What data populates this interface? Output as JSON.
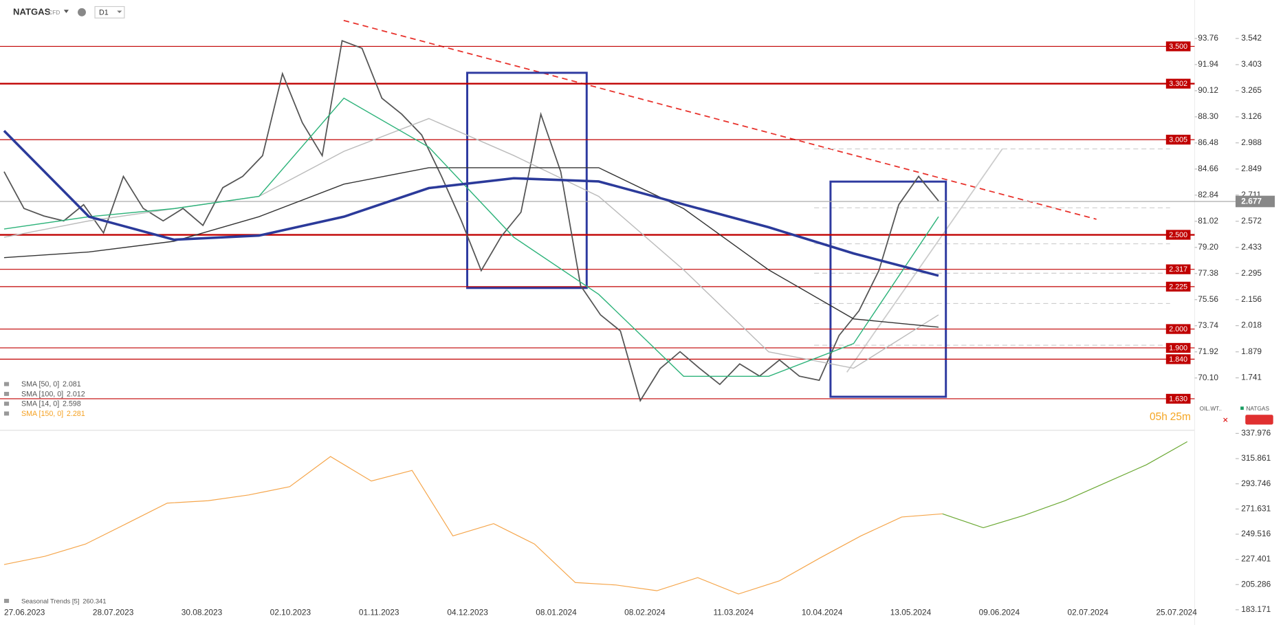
{
  "toolbar": {
    "symbol": "NATGAS",
    "kind": "CFD",
    "interval": "D1"
  },
  "chart_data": [
    {
      "type": "line",
      "ylim": [
        1.467,
        3.746
      ],
      "yticks": [
        3.542,
        3.403,
        3.265,
        3.126,
        2.988,
        2.849,
        2.711,
        2.572,
        2.433,
        2.295,
        2.156,
        2.018,
        1.879,
        1.741
      ],
      "y2lim": [
        66.51,
        96.44
      ],
      "y2ticks": [
        93.76,
        91.94,
        90.12,
        {
          "value": 88.3,
          "label": "88.30"
        },
        86.48,
        84.66,
        82.84,
        81.02,
        {
          "value": 79.2,
          "label": "79.20"
        },
        77.38,
        75.56,
        73.74,
        71.92,
        {
          "value": 70.1,
          "label": "70.10"
        }
      ],
      "last_price": 2.677,
      "levels": [
        {
          "value": 3.5,
          "label": "3.500"
        },
        3.302,
        3.005,
        {
          "value": 2.5,
          "label": "2.500"
        },
        2.317,
        2.225,
        {
          "value": 2.0,
          "label": "2.000"
        },
        {
          "value": 1.9,
          "label": "1.900"
        },
        {
          "value": 1.84,
          "label": "1.840"
        },
        {
          "value": 1.63,
          "label": "1.630"
        }
      ],
      "level_color": "#c00000",
      "compare_symbol": "OIL.WT..",
      "countdown": [
        "05h",
        "25m"
      ],
      "series": [
        {
          "name": "NATGAS",
          "color": "#555555",
          "values": [
            2.835,
            2.64,
            2.6,
            2.574,
            2.66,
            2.51,
            2.81,
            2.64,
            2.574,
            2.64,
            2.55,
            2.75,
            2.81,
            2.92,
            3.355,
            3.095,
            2.92,
            3.53,
            3.49,
            3.225,
            3.14,
            3.03,
            2.81,
            2.574,
            2.31,
            2.49,
            2.62,
            3.14,
            2.835,
            2.23,
            2.075,
            1.99,
            1.62,
            1.79,
            1.88,
            1.79,
            1.706,
            1.815,
            1.75,
            1.836,
            1.75,
            1.728,
            1.966,
            2.097,
            2.31,
            2.66,
            2.81,
            2.68
          ]
        },
        {
          "name": "SMA [50, 0]",
          "legend_value": 2.081,
          "color": "#bbbbbb",
          "values": [
            2.487,
            2.574,
            2.639,
            2.704,
            2.943,
            3.117,
            2.921,
            2.704,
            2.314,
            1.879,
            1.792,
            2.075
          ]
        },
        {
          "name": "SMA [100, 0]",
          "legend_value": 2.012,
          "color": "#333333",
          "values": [
            2.379,
            2.409,
            2.466,
            2.596,
            2.769,
            2.856,
            2.856,
            2.856,
            2.639,
            2.314,
            2.054,
            2.01
          ]
        },
        {
          "name": "SMA [14, 0]",
          "legend_value": 2.598,
          "color": "#2db37a",
          "values": [
            2.531,
            2.596,
            2.639,
            2.704,
            3.225,
            2.965,
            2.487,
            2.184,
            1.749,
            1.749,
            1.923,
            2.596
          ]
        },
        {
          "name": "SMA [150, 0]",
          "legend_value": 2.281,
          "color": "#2b3a9a",
          "highlighted": true,
          "values": [
            3.052,
            2.596,
            2.474,
            2.496,
            2.596,
            2.748,
            2.8,
            2.783,
            2.661,
            2.54,
            2.401,
            2.283
          ]
        }
      ]
    },
    {
      "type": "line",
      "legend": "Seasonal Trends [5]",
      "legend_value": 260.341,
      "ylim": [
        182,
        340
      ],
      "yticks": [
        337.976,
        315.861,
        293.746,
        271.631,
        249.516,
        227.401,
        205.286,
        183.171
      ],
      "xticks": [
        "27.06.2023",
        "28.07.2023",
        "30.08.2023",
        "02.10.2023",
        "01.11.2023",
        "04.12.2023",
        "08.01.2024",
        "08.02.2024",
        "11.03.2024",
        "10.04.2024",
        "13.05.2024",
        "09.06.2024",
        "02.07.2024",
        "25.07.2024"
      ],
      "series": [
        {
          "color": "#f5a54a",
          "values": [
            222.9,
            230.1,
            240.9,
            258.8,
            276.8,
            278.9,
            284.0,
            291.2,
            317.7,
            296.2,
            305.5,
            248.0,
            258.8,
            240.9,
            207.1,
            204.9,
            199.9,
            211.4,
            197.0,
            208.5,
            228.7,
            248.0,
            264.6,
            267.4,
            null,
            null,
            null,
            null,
            null,
            null
          ]
        },
        {
          "color": "#6aa832",
          "values": [
            null,
            null,
            null,
            null,
            null,
            null,
            null,
            null,
            null,
            null,
            null,
            null,
            null,
            null,
            null,
            null,
            null,
            null,
            null,
            null,
            null,
            null,
            null,
            267.4,
            255.2,
            266.0,
            278.9,
            294.7,
            310.5,
            330.7
          ]
        }
      ]
    }
  ]
}
